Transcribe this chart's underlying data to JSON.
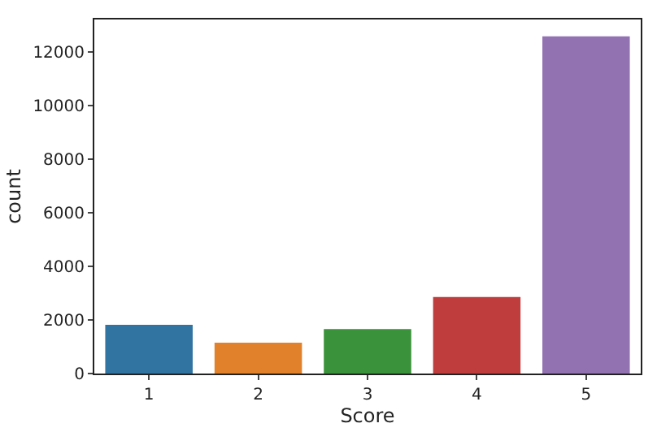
{
  "chart_data": {
    "type": "bar",
    "xlabel": "Score",
    "ylabel": "count",
    "categories": [
      "1",
      "2",
      "3",
      "4",
      "5"
    ],
    "values": [
      1820,
      1150,
      1660,
      2850,
      12570
    ],
    "colors": [
      "#3274a1",
      "#e1812c",
      "#3a923a",
      "#c03d3e",
      "#9372b2"
    ],
    "ylim": [
      0,
      13200
    ],
    "yticks": [
      0,
      2000,
      4000,
      6000,
      8000,
      10000,
      12000
    ],
    "grid": false
  }
}
